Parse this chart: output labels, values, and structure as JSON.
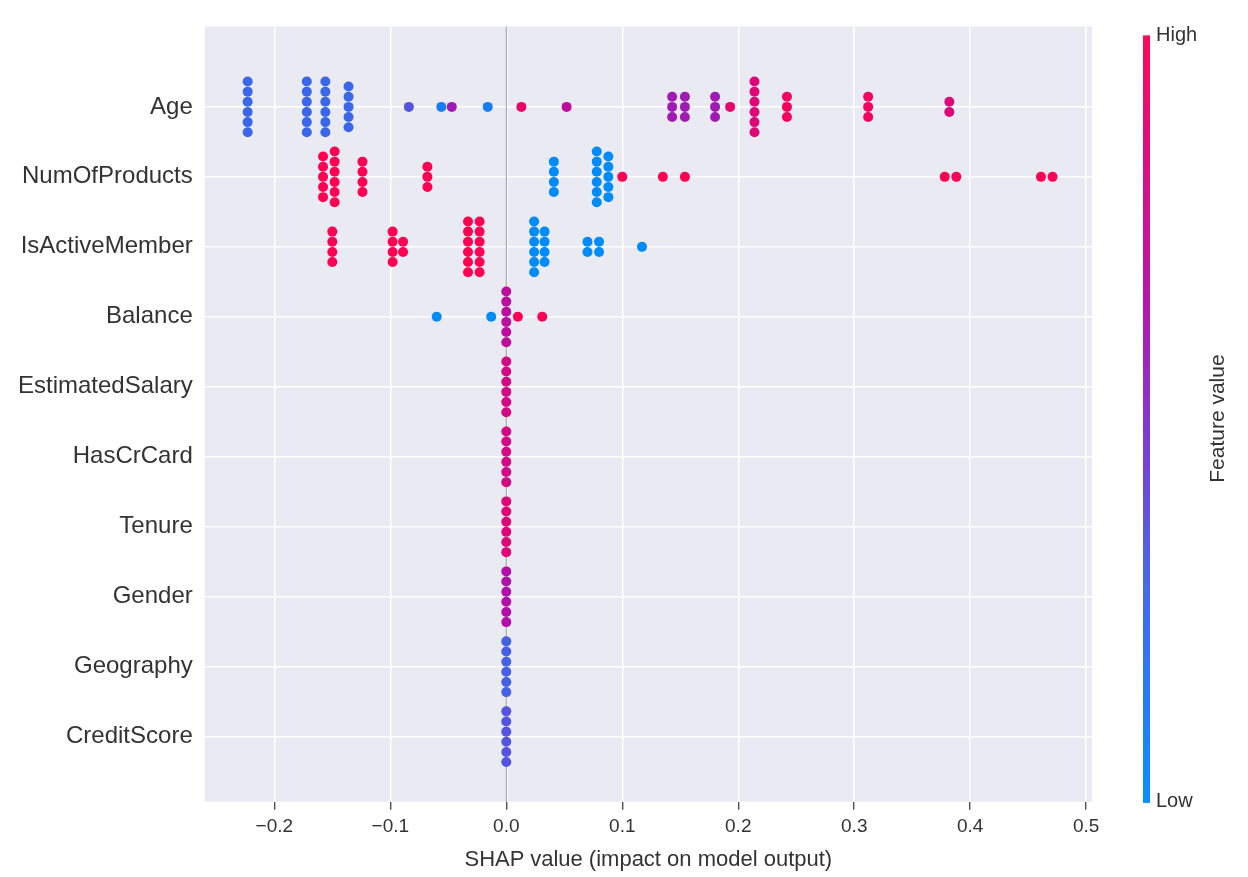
{
  "chart_data": {
    "type": "scatter",
    "orientation": "horizontal",
    "xlabel": "SHAP value (impact on model output)",
    "clabel": "Feature value",
    "clim": [
      0,
      1
    ],
    "cticks": [
      {
        "value": 0,
        "label": "Low"
      },
      {
        "value": 1,
        "label": "High"
      }
    ],
    "categories": [
      "Age",
      "NumOfProducts",
      "IsActiveMember",
      "Balance",
      "EstimatedSalary",
      "HasCrCard",
      "Tenure",
      "Gender",
      "Geography",
      "CreditScore"
    ],
    "xlim": [
      -0.26,
      0.505
    ],
    "xticks": [
      {
        "value": -0.2,
        "label": "−0.2"
      },
      {
        "value": -0.1,
        "label": "−0.1"
      },
      {
        "value": 0,
        "label": "0.0"
      },
      0.1,
      0.2,
      0.3,
      0.4,
      0.5
    ],
    "grid": true,
    "legend": false,
    "marker": "circle",
    "ref_lines": [
      {
        "axis": "x",
        "value": 0,
        "color": "#999999"
      }
    ],
    "series": [
      {
        "x": [
          "Age",
          "Age",
          "Age",
          "Age",
          "Age",
          "Age",
          "Age",
          "Age",
          "Age",
          "Age",
          "Age",
          "Age",
          "Age",
          "Age",
          "Age",
          "Age",
          "Age",
          "Age",
          "Age",
          "Age",
          "Age",
          "Age",
          "Age",
          "Age",
          "Age",
          "Age",
          "Age",
          "Age",
          "Age",
          "Age",
          "Age",
          "Age",
          "Age",
          "Age",
          "Age",
          "Age",
          "Age",
          "Age",
          "Age",
          "Age",
          "Age",
          "Age",
          "Age",
          "Age",
          "Age",
          "Age",
          "Age",
          "Age",
          "Age",
          "Age",
          "Age",
          "Age",
          "Age",
          "NumOfProducts",
          "NumOfProducts",
          "NumOfProducts",
          "NumOfProducts",
          "NumOfProducts",
          "NumOfProducts",
          "NumOfProducts",
          "NumOfProducts",
          "NumOfProducts",
          "NumOfProducts",
          "NumOfProducts",
          "NumOfProducts",
          "NumOfProducts",
          "NumOfProducts",
          "NumOfProducts",
          "NumOfProducts",
          "NumOfProducts",
          "NumOfProducts",
          "NumOfProducts",
          "NumOfProducts",
          "NumOfProducts",
          "NumOfProducts",
          "NumOfProducts",
          "NumOfProducts",
          "NumOfProducts",
          "NumOfProducts",
          "NumOfProducts",
          "NumOfProducts",
          "NumOfProducts",
          "NumOfProducts",
          "NumOfProducts",
          "NumOfProducts",
          "NumOfProducts",
          "NumOfProducts",
          "NumOfProducts",
          "NumOfProducts",
          "NumOfProducts",
          "NumOfProducts",
          "NumOfProducts",
          "NumOfProducts",
          "IsActiveMember",
          "IsActiveMember",
          "IsActiveMember",
          "IsActiveMember",
          "IsActiveMember",
          "IsActiveMember",
          "IsActiveMember",
          "IsActiveMember",
          "IsActiveMember",
          "IsActiveMember",
          "IsActiveMember",
          "IsActiveMember",
          "IsActiveMember",
          "IsActiveMember",
          "IsActiveMember",
          "IsActiveMember",
          "IsActiveMember",
          "IsActiveMember",
          "IsActiveMember",
          "IsActiveMember",
          "IsActiveMember",
          "IsActiveMember",
          "IsActiveMember",
          "IsActiveMember",
          "IsActiveMember",
          "IsActiveMember",
          "IsActiveMember",
          "IsActiveMember",
          "IsActiveMember",
          "IsActiveMember",
          "IsActiveMember",
          "IsActiveMember",
          "IsActiveMember",
          "IsActiveMember",
          "IsActiveMember",
          "IsActiveMember",
          "IsActiveMember",
          "Balance",
          "Balance",
          "Balance",
          "Balance",
          "Balance",
          "Balance",
          "Balance",
          "Balance",
          "Balance",
          "Balance",
          "EstimatedSalary",
          "EstimatedSalary",
          "EstimatedSalary",
          "EstimatedSalary",
          "EstimatedSalary",
          "EstimatedSalary",
          "HasCrCard",
          "HasCrCard",
          "HasCrCard",
          "HasCrCard",
          "HasCrCard",
          "HasCrCard",
          "Tenure",
          "Tenure",
          "Tenure",
          "Tenure",
          "Tenure",
          "Tenure",
          "Gender",
          "Gender",
          "Gender",
          "Gender",
          "Gender",
          "Gender",
          "Geography",
          "Geography",
          "Geography",
          "Geography",
          "Geography",
          "Geography",
          "CreditScore",
          "CreditScore",
          "CreditScore",
          "CreditScore",
          "CreditScore",
          "CreditScore"
        ],
        "values": [
          -0.223,
          -0.223,
          -0.223,
          -0.223,
          -0.223,
          -0.223,
          -0.172,
          -0.172,
          -0.172,
          -0.172,
          -0.172,
          -0.172,
          -0.156,
          -0.156,
          -0.156,
          -0.156,
          -0.156,
          -0.156,
          -0.136,
          -0.136,
          -0.136,
          -0.136,
          -0.136,
          -0.084,
          -0.056,
          -0.047,
          -0.016,
          0.013,
          0.052,
          0.143,
          0.143,
          0.143,
          0.154,
          0.154,
          0.154,
          0.18,
          0.18,
          0.18,
          0.193,
          0.214,
          0.214,
          0.214,
          0.214,
          0.214,
          0.214,
          0.242,
          0.242,
          0.242,
          0.312,
          0.312,
          0.312,
          0.382,
          0.382,
          -0.158,
          -0.158,
          -0.158,
          -0.158,
          -0.158,
          -0.148,
          -0.148,
          -0.148,
          -0.148,
          -0.148,
          -0.148,
          -0.124,
          -0.124,
          -0.124,
          -0.124,
          -0.068,
          -0.068,
          -0.068,
          0.041,
          0.041,
          0.041,
          0.041,
          0.078,
          0.078,
          0.078,
          0.078,
          0.078,
          0.078,
          0.088,
          0.088,
          0.088,
          0.088,
          0.088,
          0.1,
          0.135,
          0.154,
          0.378,
          0.388,
          0.461,
          0.471,
          -0.15,
          -0.15,
          -0.15,
          -0.15,
          -0.098,
          -0.098,
          -0.098,
          -0.098,
          -0.089,
          -0.089,
          -0.033,
          -0.033,
          -0.033,
          -0.033,
          -0.033,
          -0.033,
          -0.023,
          -0.023,
          -0.023,
          -0.023,
          -0.023,
          -0.023,
          0.024,
          0.024,
          0.024,
          0.024,
          0.024,
          0.024,
          0.033,
          0.033,
          0.033,
          0.033,
          0.07,
          0.07,
          0.08,
          0.08,
          0.117,
          -0.06,
          -0.013,
          0,
          0,
          0,
          0,
          0,
          0,
          0.01,
          0.031,
          0,
          0,
          0,
          0,
          0,
          0,
          0,
          0,
          0,
          0,
          0,
          0,
          0,
          0,
          0,
          0,
          0,
          0,
          0,
          0,
          0,
          0,
          0,
          0,
          0,
          0,
          0,
          0,
          0,
          0,
          0,
          0,
          0,
          0,
          0,
          0
        ],
        "cvalues": [
          0.25,
          0.25,
          0.25,
          0.25,
          0.25,
          0.25,
          0.25,
          0.25,
          0.25,
          0.25,
          0.25,
          0.25,
          0.25,
          0.25,
          0.25,
          0.25,
          0.25,
          0.25,
          0.25,
          0.25,
          0.25,
          0.25,
          0.25,
          0.35,
          0.1,
          0.6,
          0.1,
          0.9,
          0.7,
          0.6,
          0.6,
          0.6,
          0.6,
          0.6,
          0.6,
          0.6,
          0.6,
          0.6,
          0.9,
          0.85,
          0.85,
          0.85,
          0.85,
          0.85,
          0.85,
          0.95,
          0.95,
          0.95,
          0.95,
          0.95,
          0.95,
          0.85,
          0.85,
          1,
          1,
          1,
          1,
          1,
          1,
          1,
          1,
          1,
          1,
          1,
          1,
          1,
          1,
          1,
          1,
          1,
          1,
          0,
          0,
          0,
          0,
          0,
          0,
          0,
          0,
          0,
          0,
          0,
          0,
          0,
          0,
          0,
          1,
          1,
          1,
          1,
          1,
          1,
          1,
          1,
          1,
          1,
          1,
          1,
          1,
          1,
          1,
          1,
          1,
          1,
          1,
          1,
          1,
          1,
          1,
          1,
          1,
          1,
          1,
          1,
          1,
          0,
          0,
          0,
          0,
          0,
          0,
          0,
          0,
          0,
          0,
          0,
          0,
          0,
          0,
          0,
          0,
          0,
          0.7,
          0.7,
          0.7,
          0.7,
          0.7,
          0.7,
          1,
          1,
          0.8,
          0.8,
          0.8,
          0.8,
          0.8,
          0.8,
          0.8,
          0.8,
          0.8,
          0.8,
          0.8,
          0.8,
          0.85,
          0.85,
          0.85,
          0.85,
          0.85,
          0.85,
          0.65,
          0.65,
          0.65,
          0.65,
          0.65,
          0.65,
          0.3,
          0.3,
          0.3,
          0.3,
          0.3,
          0.3,
          0.35,
          0.35,
          0.35,
          0.35,
          0.35,
          0.35
        ]
      }
    ]
  }
}
